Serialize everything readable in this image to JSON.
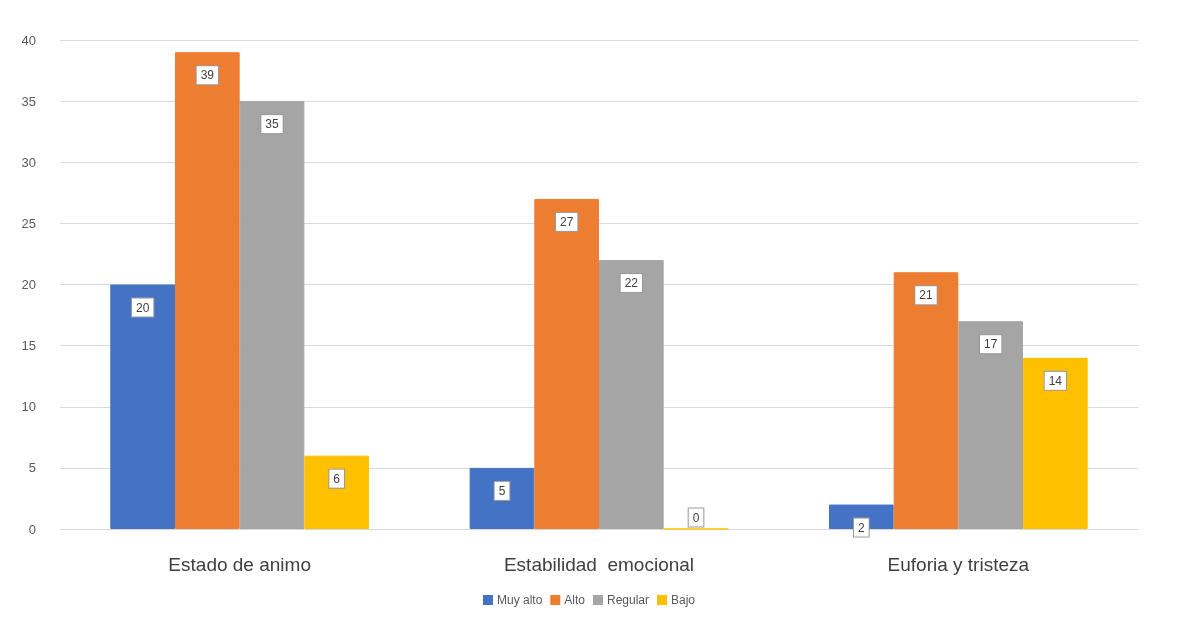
{
  "chart_data": {
    "type": "bar",
    "categories": [
      "Estado de animo",
      "Estabilidad  emocional",
      "Euforia y tristeza"
    ],
    "series": [
      {
        "name": "Muy alto",
        "color": "#4472c4",
        "values": [
          20,
          5,
          2
        ]
      },
      {
        "name": "Alto",
        "color": "#ed7d31",
        "values": [
          39,
          27,
          21
        ]
      },
      {
        "name": "Regular",
        "color": "#a5a5a5",
        "values": [
          35,
          22,
          17
        ]
      },
      {
        "name": "Bajo",
        "color": "#ffc000",
        "values": [
          6,
          0,
          14
        ]
      }
    ],
    "ylim": [
      0,
      40
    ],
    "yticks": [
      0,
      5,
      10,
      15,
      20,
      25,
      30,
      35,
      40
    ],
    "grid": "y",
    "legend": "bottom",
    "data_labels": true
  }
}
